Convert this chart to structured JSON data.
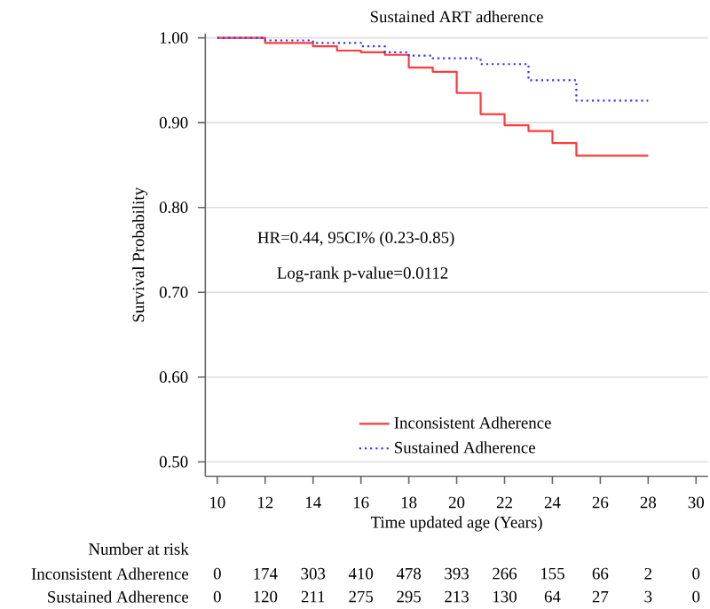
{
  "chart_data": {
    "type": "step",
    "title": "Sustained ART adherence",
    "xlabel": "Time updated age (Years)",
    "ylabel": "Survival Probability",
    "x": [
      10,
      12,
      14,
      15,
      16,
      17,
      18,
      19,
      20,
      21,
      22,
      23,
      24,
      25,
      28
    ],
    "series": [
      {
        "name": "Inconsistent Adherence",
        "color": "#ff3b3b",
        "line_style": "solid",
        "values": [
          1.0,
          0.994,
          0.99,
          0.985,
          0.983,
          0.98,
          0.965,
          0.96,
          0.935,
          0.91,
          0.897,
          0.89,
          0.876,
          0.861,
          0.861
        ]
      },
      {
        "name": "Sustained Adherence",
        "color": "#3333ff",
        "line_style": "dotted",
        "x": [
          10,
          12,
          14,
          16,
          17,
          18,
          19,
          21,
          23,
          25,
          28
        ],
        "values": [
          1.0,
          0.997,
          0.994,
          0.99,
          0.983,
          0.979,
          0.976,
          0.969,
          0.95,
          0.926,
          0.926
        ]
      }
    ],
    "xlim": [
      9.5,
      30.5
    ],
    "ylim": [
      0.483,
      1.005
    ],
    "xticks": [
      10,
      12,
      14,
      16,
      18,
      20,
      22,
      24,
      26,
      28,
      30
    ],
    "yticks": [
      {
        "value": 0.5,
        "label": "0.50"
      },
      {
        "value": 0.6,
        "label": "0.60"
      },
      {
        "value": 0.7,
        "label": "0.70"
      },
      {
        "value": 0.8,
        "label": "0.80"
      },
      {
        "value": 0.9,
        "label": "0.90"
      },
      {
        "value": 1.0,
        "label": "1.00"
      }
    ],
    "grid": "y",
    "legend": "bottom",
    "marker": "none",
    "annotations": [
      "HR=0.44, 95CI% (0.23-0.85)",
      "Log-rank p-value=0.0112",
      "Number at risk",
      "Inconsistent Adherence",
      "0",
      "174",
      "303",
      "410",
      "478",
      "393",
      "266",
      "155",
      "66",
      "2",
      "0",
      "Sustained Adherence",
      "0",
      "120",
      "211",
      "275",
      "295",
      "213",
      "130",
      "64",
      "27",
      "3",
      "0"
    ]
  }
}
